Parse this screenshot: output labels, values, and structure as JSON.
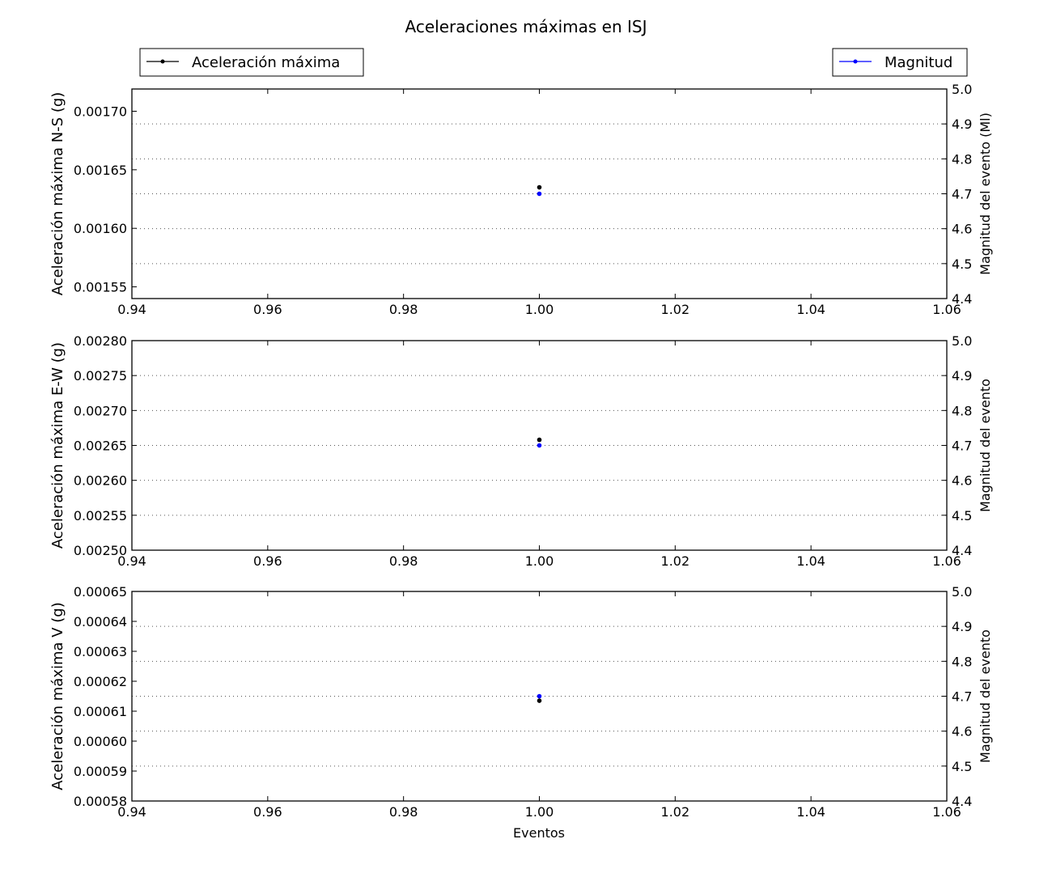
{
  "chart_data": {
    "type": "scatter",
    "title": "Aceleraciones máximas en ISJ",
    "xlabel": "Eventos",
    "xlim": [
      0.94,
      1.06
    ],
    "xticks": [
      "0.94",
      "0.96",
      "0.98",
      "1.00",
      "1.02",
      "1.04",
      "1.06"
    ],
    "legend": {
      "left": {
        "label": "Aceleración máxima",
        "color": "#000000",
        "placement": "top-left"
      },
      "right": {
        "label": "Magnitud",
        "color": "#0000ff",
        "placement": "top-right"
      }
    },
    "grid": "dotted horizontal lines at right-axis ticks",
    "panels": [
      {
        "ylabel": "Aceleración máxima N-S (g)",
        "ylim": [
          0.00154,
          0.001719
        ],
        "yticks": [
          "0.00155",
          "0.00160",
          "0.00165",
          "0.00170"
        ],
        "ytick_values": [
          0.00155,
          0.0016,
          0.00165,
          0.0017
        ],
        "y2label": "Magnitud del evento (Ml)",
        "y2lim": [
          4.4,
          5.0
        ],
        "y2ticks": [
          "4.4",
          "4.5",
          "4.6",
          "4.7",
          "4.8",
          "4.9",
          "5.0"
        ],
        "acceleration": [
          {
            "x": 1.0,
            "y": 0.001635
          }
        ],
        "magnitude": [
          {
            "x": 1.0,
            "y": 4.7
          }
        ]
      },
      {
        "ylabel": "Aceleración máxima E-W (g)",
        "ylim": [
          0.0025,
          0.0028
        ],
        "yticks": [
          "0.00250",
          "0.00255",
          "0.00260",
          "0.00265",
          "0.00270",
          "0.00275",
          "0.00280"
        ],
        "ytick_values": [
          0.0025,
          0.00255,
          0.0026,
          0.00265,
          0.0027,
          0.00275,
          0.0028
        ],
        "y2label": "Magnitud del evento",
        "y2lim": [
          4.4,
          5.0
        ],
        "y2ticks": [
          "4.4",
          "4.5",
          "4.6",
          "4.7",
          "4.8",
          "4.9",
          "5.0"
        ],
        "acceleration": [
          {
            "x": 1.0,
            "y": 0.002658
          }
        ],
        "magnitude": [
          {
            "x": 1.0,
            "y": 4.7
          }
        ]
      },
      {
        "ylabel": "Aceleración máxima V (g)",
        "ylim": [
          0.00058,
          0.00065
        ],
        "yticks": [
          "0.00058",
          "0.00059",
          "0.00060",
          "0.00061",
          "0.00062",
          "0.00063",
          "0.00064",
          "0.00065"
        ],
        "ytick_values": [
          0.00058,
          0.00059,
          0.0006,
          0.00061,
          0.00062,
          0.00063,
          0.00064,
          0.00065
        ],
        "y2label": "Magnitud del evento",
        "y2lim": [
          4.4,
          5.0
        ],
        "y2ticks": [
          "4.4",
          "4.5",
          "4.6",
          "4.7",
          "4.8",
          "4.9",
          "5.0"
        ],
        "acceleration": [
          {
            "x": 1.0,
            "y": 0.0006135
          }
        ],
        "magnitude": [
          {
            "x": 1.0,
            "y": 4.7
          }
        ]
      }
    ]
  }
}
